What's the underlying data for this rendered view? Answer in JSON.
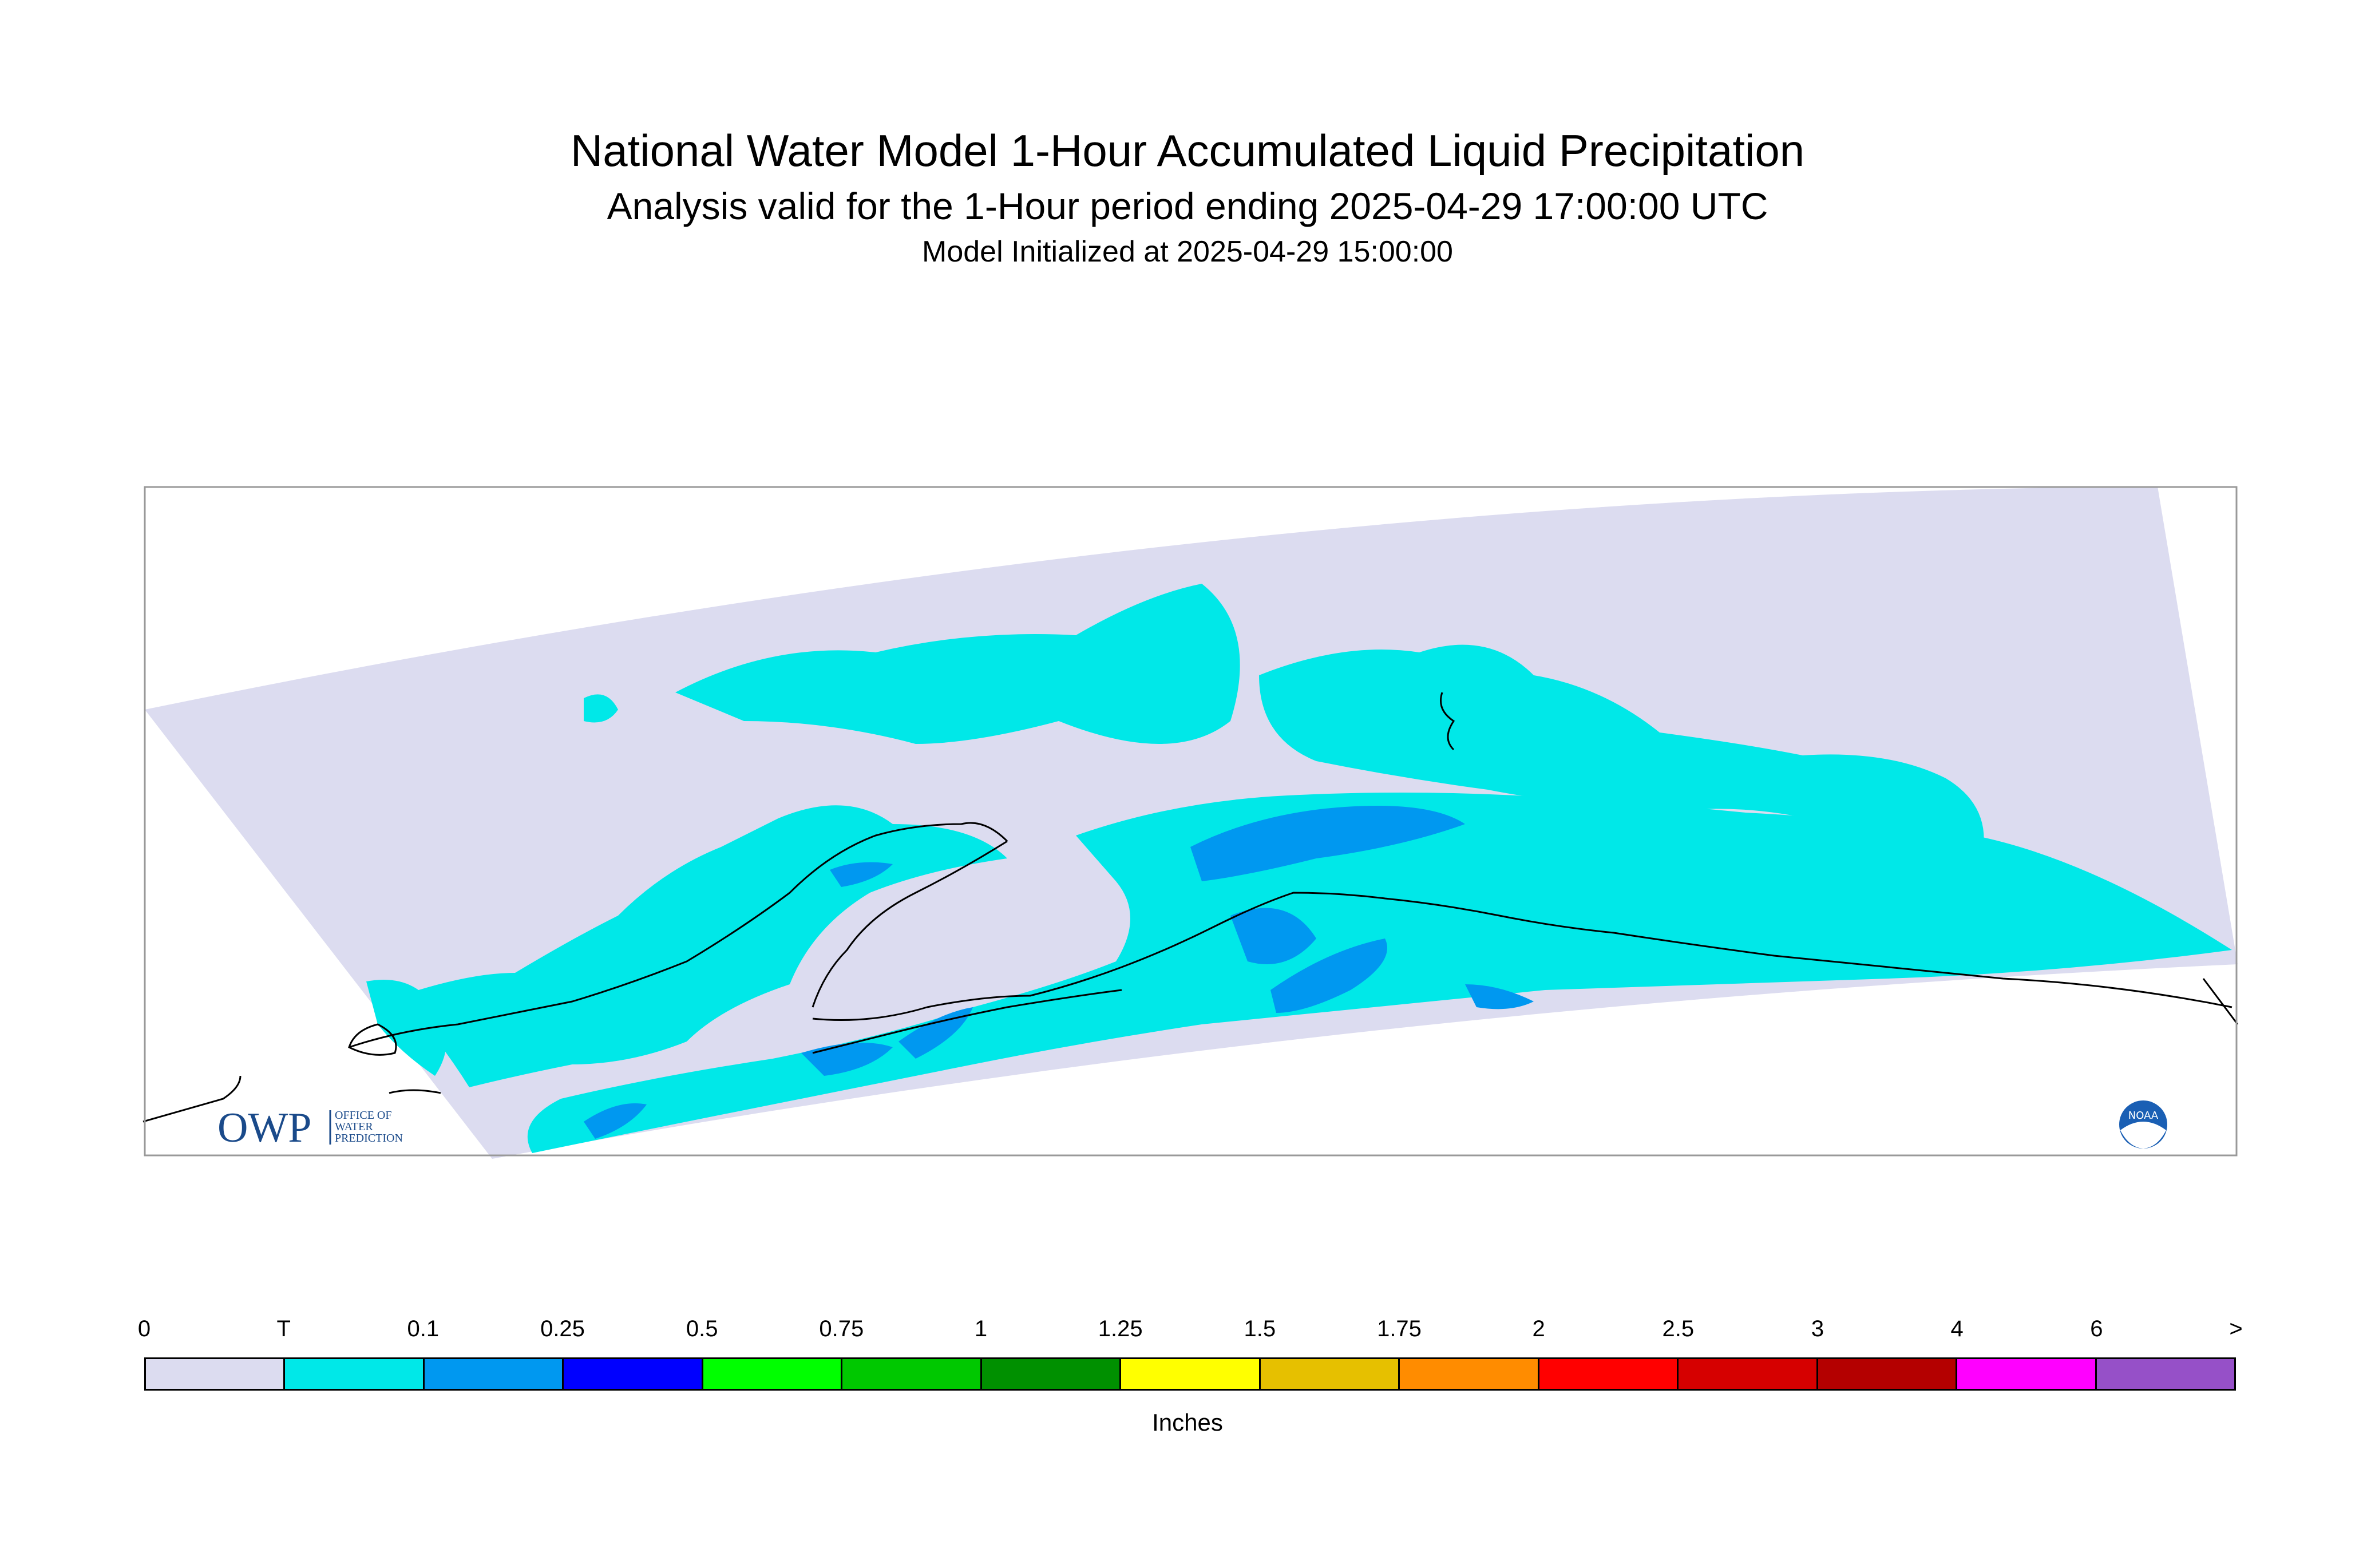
{
  "header": {
    "title": "National Water Model 1-Hour Accumulated Liquid Precipitation",
    "subtitle": "Analysis valid for the 1-Hour period ending 2025-04-29 17:00:00 UTC",
    "initialized": "Model Initialized at 2025-04-29 15:00:00"
  },
  "logos": {
    "owp_text": "OWP",
    "owp_sub": [
      "OFFICE OF",
      "WATER",
      "PREDICTION"
    ],
    "noaa_text": "NOAA"
  },
  "legend": {
    "units": "Inches",
    "tick_labels": [
      "0",
      "T",
      "0.1",
      "0.25",
      "0.5",
      "0.75",
      "1",
      "1.25",
      "1.5",
      "1.75",
      "2",
      "2.5",
      "3",
      "4",
      "6",
      ">"
    ],
    "colors": [
      "#dcdcf0",
      "#00e8e8",
      "#0098f0",
      "#0000ff",
      "#00ff00",
      "#00c800",
      "#009000",
      "#ffff00",
      "#e6c000",
      "#ff8c00",
      "#ff0000",
      "#d60000",
      "#b40000",
      "#ff00ff",
      "#9650c8"
    ]
  },
  "colors": {
    "no_precip": "#dcdcf0",
    "trace": "#00e8e8",
    "light": "#0098f0",
    "moderate": "#0000ff",
    "frame": "#999999",
    "coastline": "#000000"
  }
}
